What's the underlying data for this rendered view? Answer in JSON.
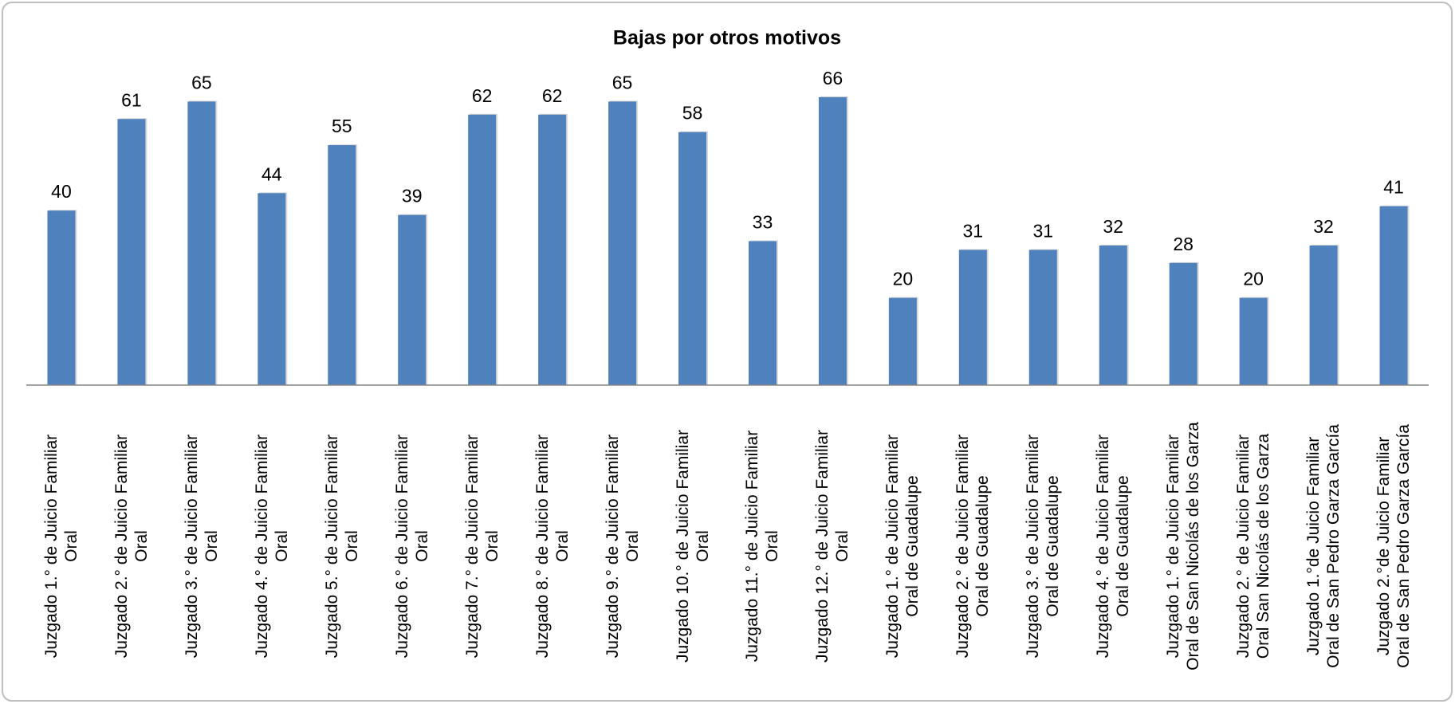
{
  "chart_data": {
    "type": "bar",
    "title": "Bajas por otros motivos",
    "categories": [
      "Juzgado 1.° de Juicio Familiar\nOral",
      "Juzgado 2.° de Juicio Familiar\nOral",
      "Juzgado 3.° de Juicio Familiar\nOral",
      "Juzgado 4.° de Juicio Familiar\nOral",
      "Juzgado 5.° de Juicio Familiar\nOral",
      "Juzgado 6.° de Juicio Familiar\nOral",
      "Juzgado 7.° de Juicio Familiar\nOral",
      "Juzgado 8.° de Juicio Familiar\nOral",
      "Juzgado 9.° de Juicio Familiar\nOral",
      "Juzgado 10.° de Juicio Familiar\nOral",
      "Juzgado 11.° de Juicio Familiar\nOral",
      "Juzgado 12.° de Juicio Familiar\nOral",
      "Juzgado 1.° de Juicio Familiar\nOral de Guadalupe",
      "Juzgado 2.° de Juicio Familiar\nOral de Guadalupe",
      "Juzgado 3.° de Juicio Familiar\nOral de Guadalupe",
      "Juzgado 4.° de Juicio Familiar\nOral de Guadalupe",
      "Juzgado 1.° de Juicio Familiar\nOral de San Nicolás de los Garza",
      "Juzgado 2.° de Juicio Familiar\nOral San Nicolás de los Garza",
      "Juzgado 1.°de Juicio Familiar\nOral de San Pedro Garza García",
      "Juzgado 2.°de Juicio Familiar\nOral de San Pedro Garza García"
    ],
    "values": [
      40,
      61,
      65,
      44,
      55,
      39,
      62,
      62,
      65,
      58,
      33,
      66,
      20,
      31,
      31,
      32,
      28,
      20,
      32,
      41
    ],
    "color": "#4f81bd",
    "ylim": [
      0,
      70
    ]
  }
}
